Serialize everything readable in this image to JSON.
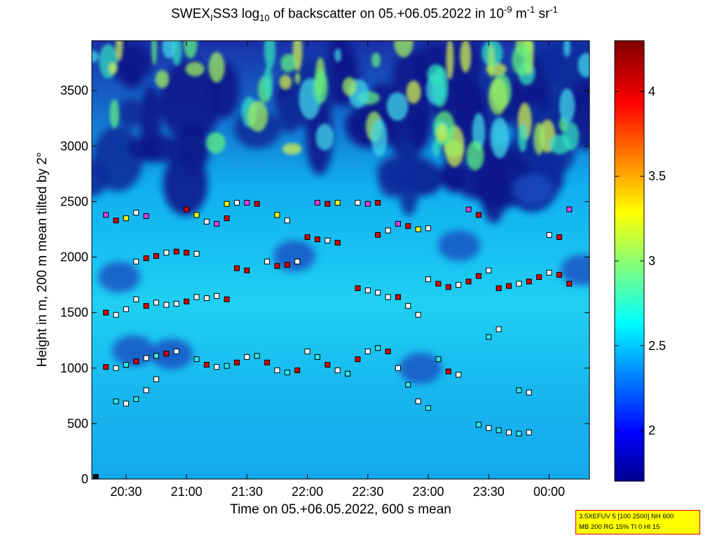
{
  "title": {
    "prefix": "SWEX",
    "sub1": "I",
    "mid": "SS3 log",
    "sub2": "10",
    "rest": " of backscatter on 05.+06.05.2022 in 10",
    "sup1": "-9",
    "unit1": " m",
    "sup2": "-1",
    "unit2": " sr",
    "sup3": "-1"
  },
  "infobox": {
    "line1": "3.5XEFUV 5 [100 2500] NH 600",
    "line2": "MB 200 RG 15% TI 0 HI 15"
  },
  "colors": {
    "marker_white": "#ffffff",
    "marker_black": "#000000",
    "marker_red": "#d40000",
    "marker_yellow": "#ffff00",
    "marker_magenta": "#e040e0",
    "marker_cyan": "#30e8e8"
  },
  "chart_data": [
    {
      "type": "heatmap",
      "title": "SWEX_I SS3 log10 of backscatter on 05.+06.05.2022 in 10^-9 m^-1 sr^-1",
      "xlabel": "Time on 05.+06.05.2022, 600 s mean",
      "ylabel": "Height in m, 200 m mean tilted by 2°",
      "x_unit": "time of day",
      "xlim": [
        "20:13",
        "00:20"
      ],
      "ylim": [
        0,
        3950
      ],
      "x_ticks": [
        "20:30",
        "21:00",
        "21:30",
        "22:00",
        "22:30",
        "23:00",
        "23:30",
        "00:00"
      ],
      "y_ticks": [
        0,
        500,
        1000,
        1500,
        2000,
        2500,
        3000,
        3500
      ],
      "colorbar": {
        "colormap": "jet",
        "range": [
          1.7,
          4.3
        ],
        "ticks": [
          2,
          2.5,
          3,
          3.5,
          4
        ]
      },
      "grid": false,
      "description": "Backscatter field: ~2.5 near the ground, ~2.7-2.8 between 1000 and 2500 m, patchy 1.8-3.1 above ~2600 m.",
      "overlay_markers": [
        {
          "name": "layer detections",
          "color_key": "mostly white/black, red/yellow/magenta near the top layer, cyan in the lower layer",
          "points": [
            [
              "20:15",
              20
            ],
            [
              "20:20",
              1500
            ],
            [
              "20:25",
              1480
            ],
            [
              "20:30",
              1530
            ],
            [
              "20:35",
              1620
            ],
            [
              "20:40",
              1560
            ],
            [
              "20:45",
              1590
            ],
            [
              "20:50",
              1570
            ],
            [
              "20:55",
              1580
            ],
            [
              "21:00",
              1600
            ],
            [
              "21:05",
              1640
            ],
            [
              "21:10",
              1630
            ],
            [
              "21:15",
              1650
            ],
            [
              "21:20",
              1620
            ],
            [
              "20:20",
              1010
            ],
            [
              "20:25",
              1000
            ],
            [
              "20:30",
              1030
            ],
            [
              "20:35",
              1060
            ],
            [
              "20:40",
              1090
            ],
            [
              "20:45",
              1110
            ],
            [
              "20:50",
              1130
            ],
            [
              "20:55",
              1150
            ],
            [
              "21:05",
              1080
            ],
            [
              "21:10",
              1030
            ],
            [
              "21:15",
              1010
            ],
            [
              "21:20",
              1020
            ],
            [
              "21:25",
              1050
            ],
            [
              "21:30",
              1100
            ],
            [
              "21:35",
              1110
            ],
            [
              "21:40",
              1050
            ],
            [
              "21:45",
              980
            ],
            [
              "21:50",
              960
            ],
            [
              "21:55",
              980
            ],
            [
              "22:00",
              1150
            ],
            [
              "22:05",
              1100
            ],
            [
              "22:10",
              1030
            ],
            [
              "22:15",
              980
            ],
            [
              "22:20",
              950
            ],
            [
              "22:25",
              1080
            ],
            [
              "22:30",
              1150
            ],
            [
              "22:35",
              1180
            ],
            [
              "22:40",
              1150
            ],
            [
              "22:45",
              1000
            ],
            [
              "22:50",
              850
            ],
            [
              "22:55",
              700
            ],
            [
              "23:00",
              640
            ],
            [
              "23:05",
              1080
            ],
            [
              "23:10",
              970
            ],
            [
              "23:15",
              940
            ],
            [
              "23:30",
              1280
            ],
            [
              "23:35",
              1350
            ],
            [
              "23:45",
              800
            ],
            [
              "23:50",
              780
            ],
            [
              "23:25",
              490
            ],
            [
              "23:30",
              460
            ],
            [
              "23:35",
              440
            ],
            [
              "23:40",
              420
            ],
            [
              "23:45",
              410
            ],
            [
              "23:50",
              420
            ],
            [
              "20:25",
              700
            ],
            [
              "20:30",
              680
            ],
            [
              "20:35",
              720
            ],
            [
              "20:40",
              800
            ],
            [
              "20:45",
              900
            ],
            [
              "20:35",
              1960
            ],
            [
              "20:40",
              1990
            ],
            [
              "20:45",
              2010
            ],
            [
              "20:50",
              2040
            ],
            [
              "20:55",
              2050
            ],
            [
              "21:00",
              2040
            ],
            [
              "21:05",
              2030
            ],
            [
              "21:25",
              1900
            ],
            [
              "21:30",
              1880
            ],
            [
              "21:40",
              1960
            ],
            [
              "21:45",
              1920
            ],
            [
              "21:50",
              1930
            ],
            [
              "21:55",
              1960
            ],
            [
              "22:00",
              2180
            ],
            [
              "22:05",
              2160
            ],
            [
              "22:10",
              2150
            ],
            [
              "22:15",
              2130
            ],
            [
              "22:25",
              1720
            ],
            [
              "22:30",
              1700
            ],
            [
              "22:35",
              1680
            ],
            [
              "22:40",
              1640
            ],
            [
              "22:45",
              1640
            ],
            [
              "22:50",
              1560
            ],
            [
              "22:55",
              1480
            ],
            [
              "23:00",
              1800
            ],
            [
              "23:05",
              1760
            ],
            [
              "23:10",
              1730
            ],
            [
              "23:15",
              1750
            ],
            [
              "23:20",
              1780
            ],
            [
              "23:25",
              1830
            ],
            [
              "23:30",
              1880
            ],
            [
              "23:35",
              1720
            ],
            [
              "23:40",
              1740
            ],
            [
              "23:45",
              1760
            ],
            [
              "23:50",
              1780
            ],
            [
              "23:55",
              1820
            ],
            [
              "00:00",
              1860
            ],
            [
              "00:05",
              1840
            ],
            [
              "00:10",
              1760
            ],
            [
              "20:20",
              2380
            ],
            [
              "20:25",
              2330
            ],
            [
              "20:30",
              2350
            ],
            [
              "20:35",
              2400
            ],
            [
              "20:40",
              2370
            ],
            [
              "21:00",
              2430
            ],
            [
              "21:05",
              2380
            ],
            [
              "21:10",
              2320
            ],
            [
              "21:15",
              2300
            ],
            [
              "21:20",
              2350
            ],
            [
              "21:20",
              2480
            ],
            [
              "21:25",
              2490
            ],
            [
              "21:30",
              2490
            ],
            [
              "21:35",
              2480
            ],
            [
              "21:45",
              2380
            ],
            [
              "21:50",
              2330
            ],
            [
              "22:05",
              2490
            ],
            [
              "22:10",
              2480
            ],
            [
              "22:15",
              2490
            ],
            [
              "22:25",
              2490
            ],
            [
              "22:30",
              2480
            ],
            [
              "22:35",
              2490
            ],
            [
              "22:35",
              2200
            ],
            [
              "22:40",
              2240
            ],
            [
              "22:45",
              2300
            ],
            [
              "22:50",
              2280
            ],
            [
              "22:55",
              2250
            ],
            [
              "23:00",
              2260
            ],
            [
              "23:20",
              2430
            ],
            [
              "23:25",
              2380
            ],
            [
              "00:00",
              2200
            ],
            [
              "00:05",
              2180
            ],
            [
              "00:10",
              2430
            ]
          ]
        }
      ]
    }
  ]
}
